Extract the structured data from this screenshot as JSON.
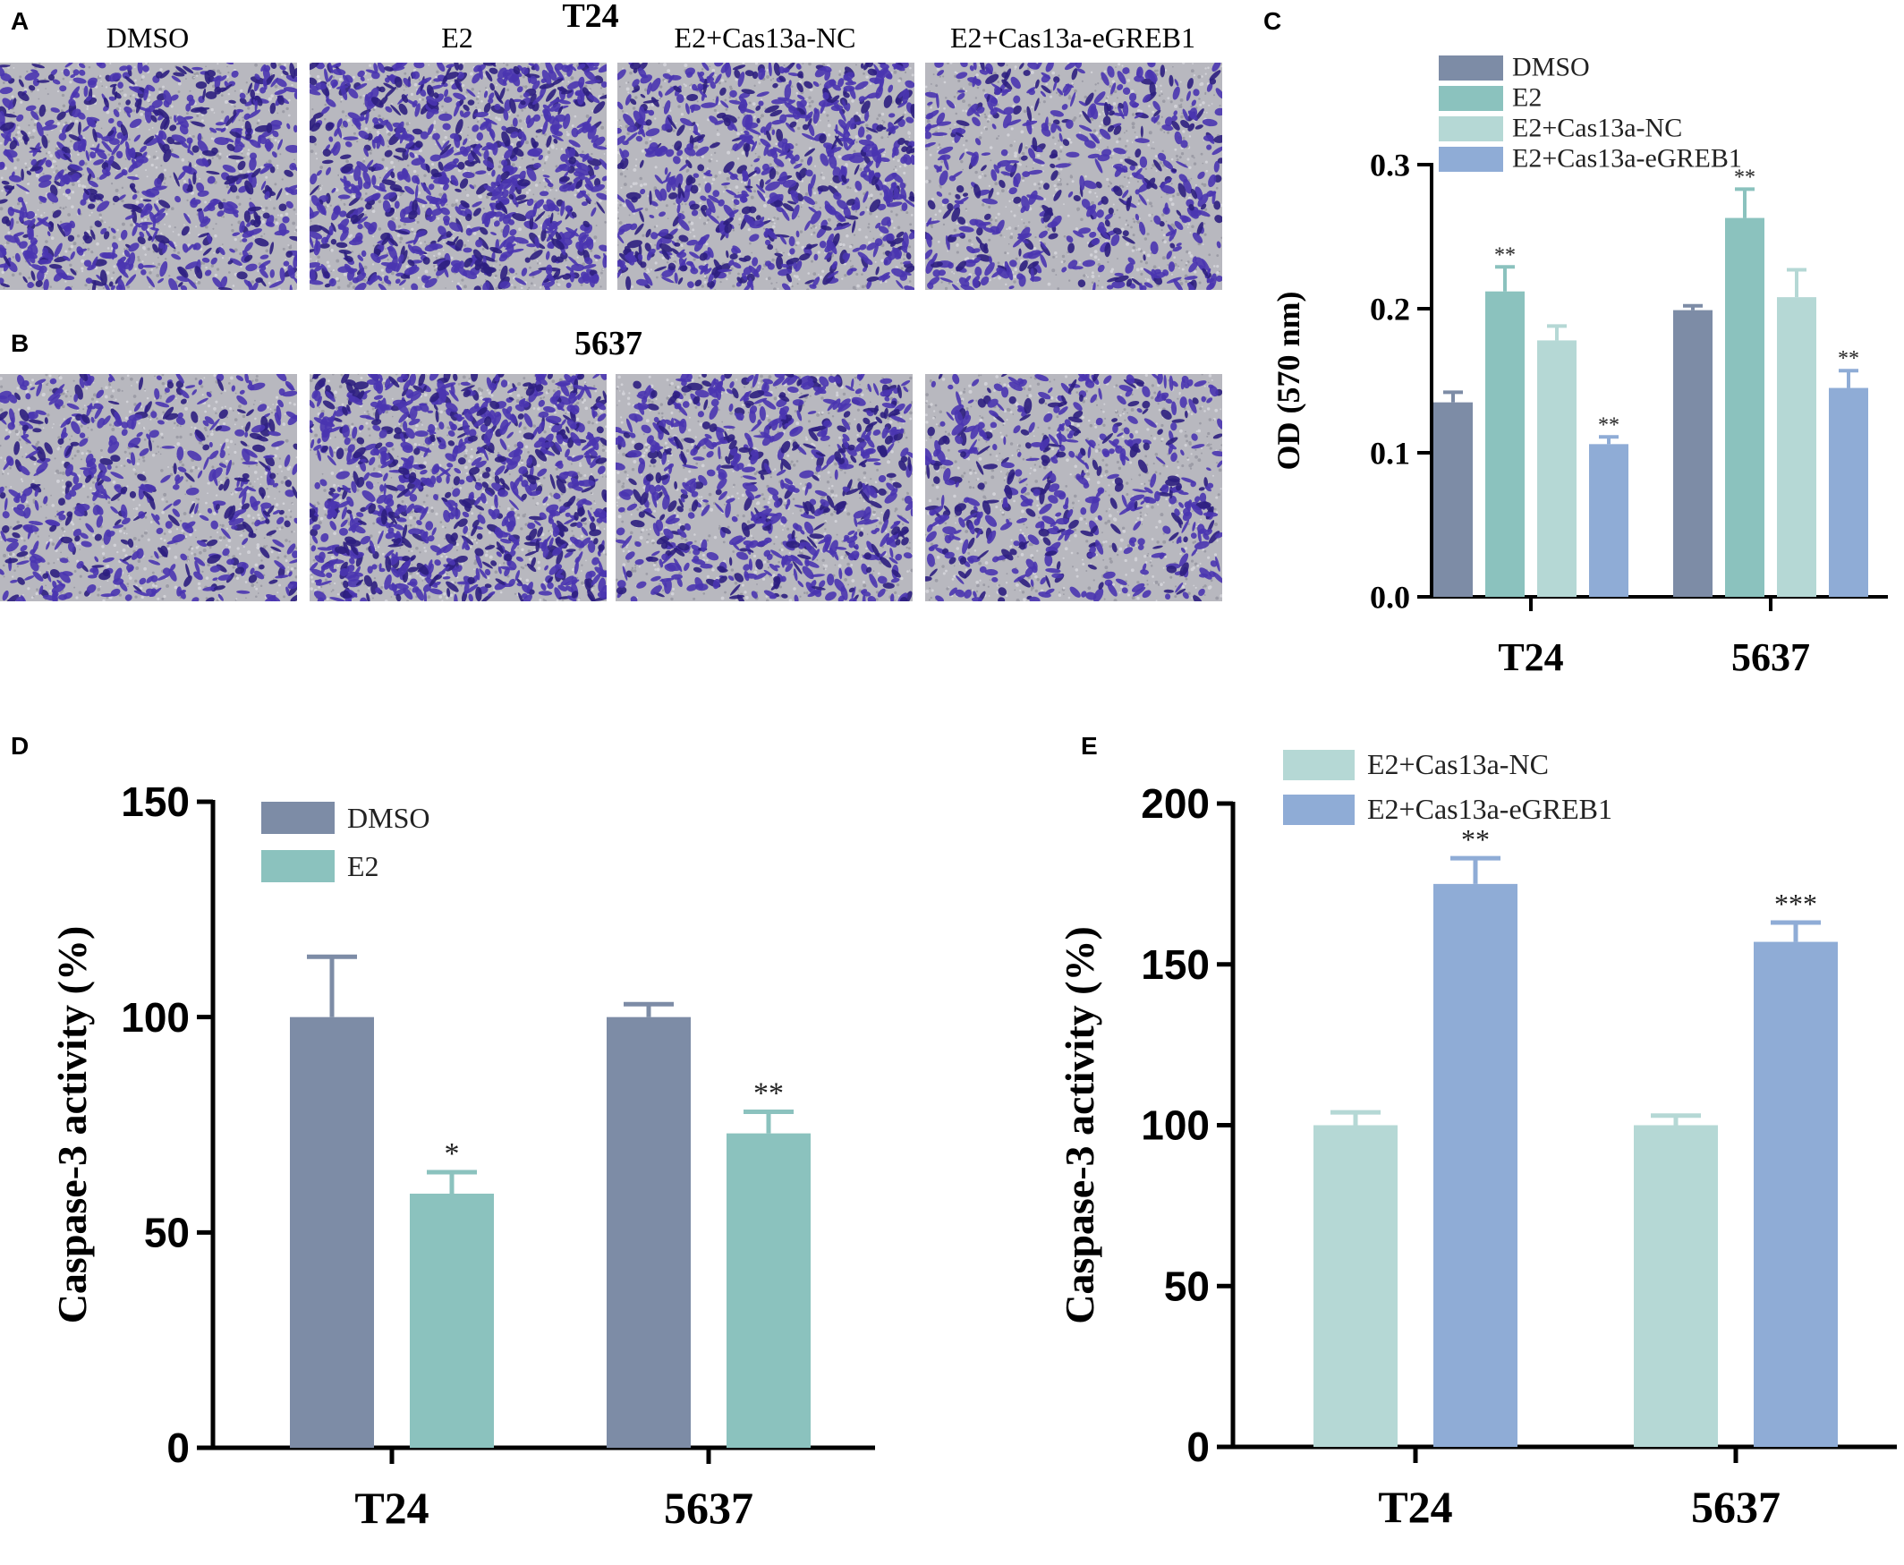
{
  "panels": {
    "a": {
      "letter": "A",
      "title": "T24",
      "columns": [
        "DMSO",
        "E2",
        "E2+Cas13a-NC",
        "E2+Cas13a-eGREB1"
      ]
    },
    "b": {
      "letter": "B",
      "title": "5637"
    },
    "c": {
      "letter": "C"
    },
    "d": {
      "letter": "D"
    },
    "e": {
      "letter": "E"
    }
  },
  "colors": {
    "stain_background": "#b8b8bf",
    "stain_cells": "#4a35b0",
    "stain_cells_dark": "#2e1f80",
    "dmso": "#7d8ca6",
    "e2": "#8bc2be",
    "nc": "#b5d8d5",
    "egreb1": "#8facd6"
  },
  "chart_data": [
    {
      "id": "c",
      "type": "bar",
      "ylabel": "OD (570 nm)",
      "ylim": [
        0,
        0.3
      ],
      "yticks": [
        "0.0",
        "0.1",
        "0.2",
        "0.3"
      ],
      "categories": [
        "T24",
        "5637"
      ],
      "legend_position": "top",
      "series": [
        {
          "name": "DMSO",
          "color": "#7d8ca6",
          "values": [
            0.135,
            0.199
          ],
          "errors": [
            0.007,
            0.003
          ],
          "sig": [
            "",
            ""
          ]
        },
        {
          "name": "E2",
          "color": "#8bc2be",
          "values": [
            0.212,
            0.263
          ],
          "errors": [
            0.017,
            0.02
          ],
          "sig": [
            "**",
            "**"
          ]
        },
        {
          "name": "E2+Cas13a-NC",
          "color": "#b5d8d5",
          "values": [
            0.178,
            0.208
          ],
          "errors": [
            0.01,
            0.019
          ],
          "sig": [
            "",
            ""
          ]
        },
        {
          "name": "E2+Cas13a-eGREB1",
          "color": "#8facd6",
          "values": [
            0.106,
            0.145
          ],
          "errors": [
            0.005,
            0.012
          ],
          "sig": [
            "**",
            "**"
          ]
        }
      ]
    },
    {
      "id": "d",
      "type": "bar",
      "ylabel": "Caspase-3 activity (%)",
      "ylim": [
        0,
        150
      ],
      "yticks": [
        "0",
        "50",
        "100",
        "150"
      ],
      "categories": [
        "T24",
        "5637"
      ],
      "legend_position": "top-left",
      "series": [
        {
          "name": "DMSO",
          "color": "#7d8ca6",
          "values": [
            100,
            100
          ],
          "errors": [
            14,
            3
          ],
          "sig": [
            "",
            ""
          ]
        },
        {
          "name": "E2",
          "color": "#8bc2be",
          "values": [
            59,
            73
          ],
          "errors": [
            5,
            5
          ],
          "sig": [
            "*",
            "**"
          ]
        }
      ]
    },
    {
      "id": "e",
      "type": "bar",
      "ylabel": "Caspase-3 activity (%)",
      "ylim": [
        0,
        200
      ],
      "yticks": [
        "0",
        "50",
        "100",
        "150",
        "200"
      ],
      "categories": [
        "T24",
        "5637"
      ],
      "legend_position": "top-left",
      "series": [
        {
          "name": "E2+Cas13a-NC",
          "color": "#b5d8d5",
          "values": [
            100,
            100
          ],
          "errors": [
            4,
            3
          ],
          "sig": [
            "",
            ""
          ]
        },
        {
          "name": "E2+Cas13a-eGREB1",
          "color": "#8facd6",
          "values": [
            175,
            157
          ],
          "errors": [
            8,
            6
          ],
          "sig": [
            "**",
            "***"
          ]
        }
      ]
    }
  ]
}
